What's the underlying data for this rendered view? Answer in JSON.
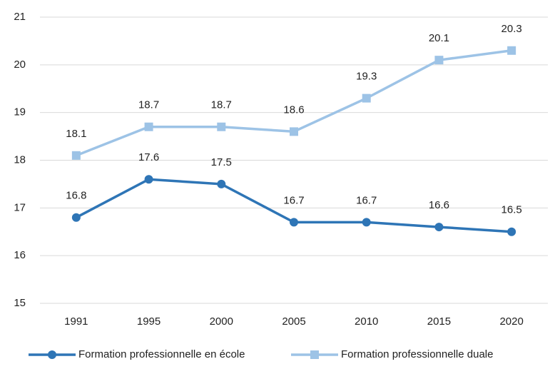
{
  "chart_data": {
    "type": "line",
    "categories": [
      "1991",
      "1995",
      "2000",
      "2005",
      "2010",
      "2015",
      "2020"
    ],
    "series": [
      {
        "name": "Formation professionnelle en école",
        "color": "#2e75b6",
        "marker": "circle",
        "values": [
          16.8,
          17.6,
          17.5,
          16.7,
          16.7,
          16.6,
          16.5
        ]
      },
      {
        "name": "Formation professionnelle duale",
        "color": "#9dc3e6",
        "marker": "square",
        "values": [
          18.1,
          18.7,
          18.7,
          18.6,
          19.3,
          20.1,
          20.3
        ]
      }
    ],
    "ylim": [
      15,
      21
    ],
    "yticks": [
      15,
      16,
      17,
      18,
      19,
      20,
      21
    ],
    "grid": true,
    "legend": "bottom"
  }
}
